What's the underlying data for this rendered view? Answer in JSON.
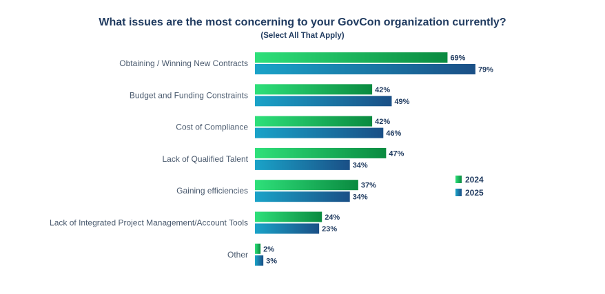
{
  "chart_data": {
    "type": "bar",
    "orientation": "horizontal",
    "title": "What issues are the most concerning to your GovCon organization currently?",
    "subtitle": "(Select All That Apply)",
    "categories": [
      "Obtaining / Winning New Contracts",
      "Budget and Funding Constraints",
      "Cost of Compliance",
      "Lack of Qualified Talent",
      "Gaining efficiencies",
      "Lack of Integrated Project Management/Account Tools",
      "Other"
    ],
    "series": [
      {
        "name": "2024",
        "values": [
          69,
          42,
          42,
          47,
          37,
          24,
          2
        ],
        "color_start": "#2ee07a",
        "color_end": "#0a8a40"
      },
      {
        "name": "2025",
        "values": [
          79,
          49,
          46,
          34,
          34,
          23,
          3
        ],
        "color_start": "#1aa3c8",
        "color_end": "#1a4f86"
      }
    ],
    "value_suffix": "%",
    "xlim": [
      0,
      100
    ],
    "legend_position": "right",
    "grid": false
  }
}
